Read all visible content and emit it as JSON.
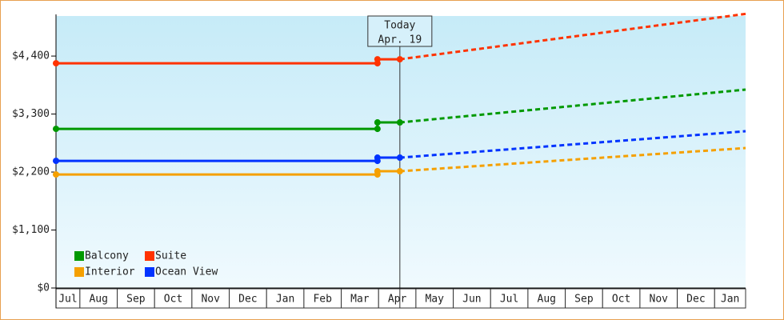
{
  "chart_data": {
    "type": "line",
    "annotation": {
      "x": 9.57,
      "lines": [
        "Today",
        "Apr. 19"
      ]
    },
    "x_labels": [
      "Jul",
      "Aug",
      "Sep",
      "Oct",
      "Nov",
      "Dec",
      "Jan",
      "Feb",
      "Mar",
      "Apr",
      "May",
      "Jun",
      "Jul",
      "Aug",
      "Sep",
      "Oct",
      "Nov",
      "Dec",
      "Jan"
    ],
    "xlim": [
      0.36,
      18.83
    ],
    "x": [
      0.36,
      8.97,
      8.97,
      9.57
    ],
    "forecast_x": [
      9.57,
      18.83
    ],
    "ylim": [
      0,
      5160
    ],
    "yticks": [
      {
        "value": 0,
        "label": "$0"
      },
      {
        "value": 1100,
        "label": "$1,100"
      },
      {
        "value": 2200,
        "label": "$2,200"
      },
      {
        "value": 3300,
        "label": "$3,300"
      },
      {
        "value": 4400,
        "label": "$4,400"
      }
    ],
    "series": [
      {
        "name": "Balcony",
        "color": "#009900",
        "values": [
          3019,
          3019,
          3141,
          3141
        ],
        "forecast": [
          3141,
          3764
        ]
      },
      {
        "name": "Suite",
        "color": "#ff3300",
        "values": [
          4263,
          4263,
          4339,
          4339
        ],
        "forecast": [
          4339,
          5200
        ]
      },
      {
        "name": "Interior",
        "color": "#f5a000",
        "values": [
          2154,
          2154,
          2215,
          2215
        ],
        "forecast": [
          2215,
          2655
        ]
      },
      {
        "name": "Ocean View",
        "color": "#0033ff",
        "values": [
          2412,
          2412,
          2473,
          2473
        ],
        "forecast": [
          2473,
          2974
        ]
      }
    ]
  }
}
